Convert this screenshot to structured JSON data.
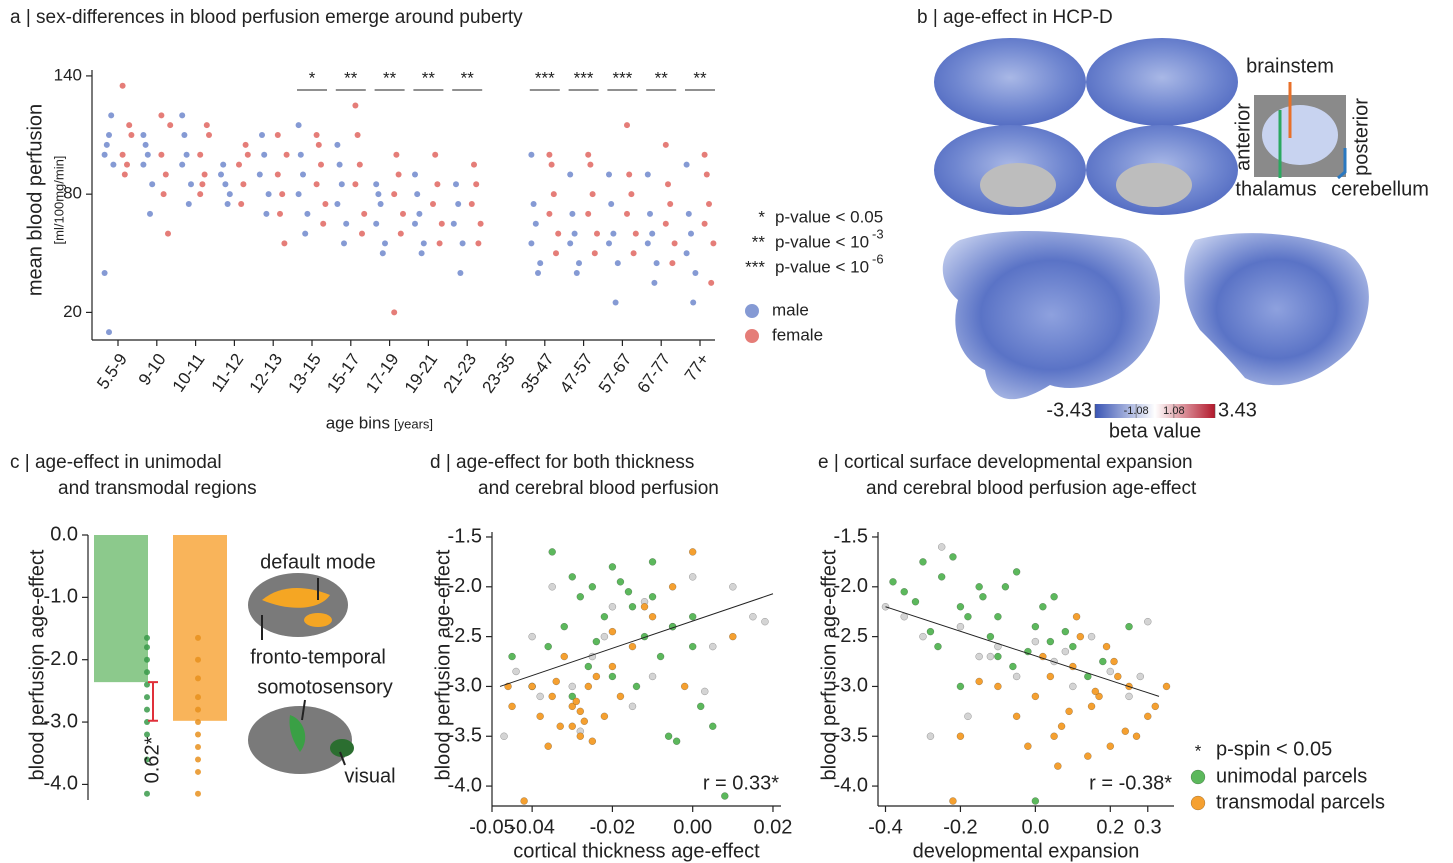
{
  "chart_data": [
    {
      "type": "strip",
      "title": "a  |  sex-differences in blood perfusion emerge around puberty",
      "ylabel": "mean blood perfusion",
      "ylabel_unit": "[ml/100mg/min]",
      "xlabel": "age bins",
      "xlabel_unit": "[years]",
      "categories": [
        "5.5-9",
        "9-10",
        "10-11",
        "11-12",
        "12-13",
        "13-15",
        "15-17",
        "17-19",
        "19-21",
        "21-23",
        "23-35",
        "35-47",
        "47-57",
        "57-67",
        "67-77",
        "77+"
      ],
      "ylim": [
        6,
        143
      ],
      "yticks": [
        20,
        80,
        140
      ],
      "series": [
        {
          "name": "male",
          "color": "#7088cc",
          "values": [
            [
              100,
              110,
              95,
              105,
              120,
              40,
              10
            ],
            [
              95,
              100,
              85,
              105,
              70,
              110
            ],
            [
              95,
              100,
              85,
              110,
              75,
              120
            ],
            [
              90,
              85,
              80,
              95,
              75
            ],
            [
              90,
              100,
              80,
              110,
              70
            ],
            [
              80,
              90,
              70,
              100,
              60,
              115
            ],
            [
              75,
              85,
              65,
              95,
              55,
              105
            ],
            [
              65,
              75,
              55,
              80,
              50,
              85
            ],
            [
              65,
              70,
              55,
              80,
              50,
              90
            ],
            [
              65,
              75,
              55,
              85,
              40
            ],
            [],
            [
              55,
              65,
              45,
              75,
              40,
              100
            ],
            [
              55,
              60,
              45,
              70,
              40,
              90
            ],
            [
              55,
              60,
              45,
              75,
              25,
              90
            ],
            [
              55,
              60,
              45,
              70,
              35,
              90
            ],
            [
              50,
              60,
              40,
              70,
              25,
              95
            ]
          ]
        },
        {
          "name": "female",
          "color": "#e06660",
          "values": [
            [
              100,
              95,
              110,
              90,
              115,
              135
            ],
            [
              100,
              90,
              115,
              80,
              60,
              120
            ],
            [
              100,
              90,
              110,
              85,
              115,
              80
            ],
            [
              95,
              85,
              100,
              75,
              105
            ],
            [
              90,
              80,
              100,
              70,
              55,
              110
            ],
            [
              85,
              95,
              75,
              105,
              65,
              110
            ],
            [
              85,
              95,
              70,
              110,
              60,
              125
            ],
            [
              80,
              90,
              70,
              100,
              60,
              20
            ],
            [
              75,
              85,
              65,
              100,
              55
            ],
            [
              75,
              85,
              65,
              95,
              55
            ],
            [],
            [
              70,
              80,
              60,
              95,
              50,
              100
            ],
            [
              70,
              80,
              60,
              95,
              50,
              100
            ],
            [
              70,
              80,
              60,
              90,
              50,
              115
            ],
            [
              65,
              75,
              55,
              85,
              45,
              105
            ],
            [
              65,
              75,
              55,
              90,
              35,
              100
            ]
          ]
        }
      ],
      "significance": [
        null,
        null,
        null,
        null,
        null,
        "*",
        "**",
        "**",
        "**",
        "**",
        null,
        "***",
        "***",
        "***",
        "**",
        "**"
      ],
      "significance_legend": [
        {
          "symbol": "*",
          "text": "p-value < 0.05"
        },
        {
          "symbol": "**",
          "text": "p-value < 10",
          "sup": "-3"
        },
        {
          "symbol": "***",
          "text": "p-value < 10",
          "sup": "-6"
        }
      ]
    },
    {
      "type": "brain-map",
      "title": "b  |  age-effect in HCP-D",
      "labels": [
        {
          "text": "brainstem",
          "color": "#e8702a"
        },
        {
          "text": "anterior",
          "color": "#222222"
        },
        {
          "text": "posterior",
          "color": "#222222"
        },
        {
          "text": "thalamus",
          "color": "#2aa860"
        },
        {
          "text": "cerebellum",
          "color": "#2a78c0"
        }
      ],
      "colorbar": {
        "label": "beta value",
        "clim": [
          -3.43,
          3.43
        ],
        "ticks": [
          -3.43,
          -1.08,
          1.08,
          3.43
        ],
        "colors": [
          "#3a55b4",
          "#ffffff",
          "#b2182b"
        ]
      }
    },
    {
      "type": "bar",
      "title": [
        "c  |  age-effect in unimodal",
        "and transmodal regions"
      ],
      "ylabel": "blood perfusion age-effect",
      "ylim": [
        -4.25,
        0
      ],
      "yticks": [
        {
          "value": 0,
          "label": "0.0"
        },
        {
          "value": -1,
          "label": "-1.0"
        },
        {
          "value": -2,
          "label": "-2.0"
        },
        {
          "value": -3,
          "label": "-3.0"
        },
        {
          "value": -4,
          "label": "-4.0"
        }
      ],
      "values": [
        -2.36,
        -2.98
      ],
      "colors": [
        "#8cc98c",
        "#f9b45a"
      ],
      "points": [
        [
          -1.65,
          -1.8,
          -2.0,
          -2.2,
          -2.4,
          -2.6,
          -2.8,
          -3.0,
          -3.2,
          -3.6,
          -4.15
        ],
        [
          -1.65,
          -2.0,
          -2.3,
          -2.6,
          -2.8,
          -3.0,
          -3.2,
          -3.4,
          -3.6,
          -3.8,
          -4.15
        ]
      ],
      "point_colors": [
        "#3a9a4a",
        "#e8901e"
      ],
      "difference_label": "0.62*",
      "difference_color": "#e0303a",
      "region_labels": [
        {
          "text": "default mode",
          "color": "#f0901e"
        },
        {
          "text": "fronto-temporal",
          "color": "#f0901e"
        },
        {
          "text": "somotosensory",
          "color": "#3aa045"
        },
        {
          "text": "visual",
          "color": "#3aa045"
        }
      ]
    },
    {
      "type": "scatter",
      "title": [
        "d  |  age-effect for both thickness",
        "and cerebral blood perfusion"
      ],
      "xlabel": "cortical thickness age-effect",
      "ylabel": "blood perfusion age-effect",
      "xlim": [
        -0.05,
        0.022
      ],
      "xticks": [
        -0.05,
        -0.04,
        -0.02,
        {
          "value": 0,
          "label": "0.00"
        },
        0.02
      ],
      "ylim": [
        -4.2,
        -1.45
      ],
      "yticks": [
        -1.5,
        {
          "value": -2,
          "label": "-2.0"
        },
        -2.5,
        {
          "value": -3,
          "label": "-3.0"
        },
        -3.5,
        {
          "value": -4,
          "label": "-4.0"
        }
      ],
      "series": [
        {
          "color": "#d4d4d4",
          "x": [
            -0.047,
            -0.04,
            -0.035,
            -0.03,
            -0.025,
            -0.02,
            -0.015,
            -0.01,
            -0.005,
            0,
            0.005,
            0.01,
            0.015,
            -0.038,
            -0.022,
            -0.012,
            0.003,
            0.018,
            -0.044,
            -0.028
          ],
          "y": [
            -3.5,
            -2.5,
            -2.0,
            -3.0,
            -2.7,
            -2.2,
            -3.2,
            -2.9,
            -2.4,
            -1.9,
            -2.6,
            -2.0,
            -2.3,
            -3.1,
            -2.5,
            -2.15,
            -3.05,
            -2.35,
            -2.85,
            -3.45
          ]
        },
        {
          "color": "#5cb85c",
          "x": [
            -0.035,
            -0.03,
            -0.025,
            -0.02,
            -0.015,
            -0.01,
            -0.005,
            0,
            0.005,
            -0.028,
            -0.022,
            -0.018,
            -0.012,
            -0.008,
            -0.032,
            -0.026,
            -0.02,
            -0.014,
            -0.006,
            0.002,
            -0.045,
            -0.04,
            -0.01,
            0.008,
            -0.016,
            -0.024,
            -0.03,
            -0.036,
            0,
            -0.004
          ],
          "y": [
            -1.65,
            -1.9,
            -2.0,
            -1.8,
            -2.2,
            -2.1,
            -2.4,
            -2.6,
            -3.4,
            -2.1,
            -2.3,
            -1.95,
            -2.5,
            -2.7,
            -2.4,
            -2.8,
            -2.9,
            -3.0,
            -3.5,
            -3.2,
            -2.7,
            -3.0,
            -1.75,
            -4.1,
            -2.05,
            -2.55,
            -3.1,
            -2.6,
            -2.3,
            -3.55
          ]
        },
        {
          "color": "#f5a030",
          "x": [
            -0.045,
            -0.04,
            -0.038,
            -0.035,
            -0.033,
            -0.03,
            -0.028,
            -0.026,
            -0.024,
            -0.022,
            -0.02,
            -0.018,
            -0.036,
            -0.032,
            -0.03,
            -0.028,
            -0.025,
            -0.042,
            -0.015,
            -0.01,
            -0.005,
            0,
            0.01,
            -0.002,
            -0.034,
            -0.029,
            -0.027,
            -0.046,
            -0.02,
            -0.012
          ],
          "y": [
            -3.2,
            -3.0,
            -3.3,
            -3.1,
            -3.4,
            -3.2,
            -3.5,
            -3.0,
            -2.9,
            -3.3,
            -2.8,
            -3.1,
            -3.6,
            -2.7,
            -3.4,
            -3.25,
            -3.55,
            -4.15,
            -2.6,
            -2.3,
            -2.0,
            -1.65,
            -2.5,
            -3.0,
            -2.95,
            -3.15,
            -3.35,
            -3.0,
            -2.45,
            -2.2
          ]
        }
      ],
      "fit": {
        "x": [
          -0.048,
          0.02
        ],
        "y": [
          -3.0,
          -2.07
        ]
      },
      "annotation": "r = 0.33*"
    },
    {
      "type": "scatter",
      "title": [
        "e  |  cortical surface developmental expansion",
        "and cerebral blood perfusion age-effect"
      ],
      "xlabel": "developmental expansion",
      "ylabel": "blood perfusion age-effect",
      "xlim": [
        -0.42,
        0.37
      ],
      "xticks": [
        -0.4,
        -0.2,
        {
          "value": 0,
          "label": "0.0"
        },
        0.2,
        0.3
      ],
      "ylim": [
        -4.2,
        -1.45
      ],
      "yticks": [
        -1.5,
        {
          "value": -2,
          "label": "-2.0"
        },
        -2.5,
        {
          "value": -3,
          "label": "-3.0"
        },
        -3.5,
        {
          "value": -4,
          "label": "-4.0"
        }
      ],
      "series": [
        {
          "color": "#d4d4d4",
          "x": [
            -0.4,
            -0.35,
            -0.3,
            -0.25,
            -0.2,
            -0.15,
            -0.1,
            -0.05,
            0,
            0.05,
            0.1,
            0.15,
            0.2,
            0.25,
            0.3,
            -0.28,
            -0.12,
            0.08,
            0.28,
            -0.18
          ],
          "y": [
            -2.2,
            -2.3,
            -2.5,
            -1.6,
            -2.4,
            -2.7,
            -2.6,
            -2.9,
            -2.55,
            -2.75,
            -3.0,
            -2.5,
            -2.85,
            -3.1,
            -2.35,
            -3.5,
            -2.7,
            -2.65,
            -2.9,
            -3.3
          ]
        },
        {
          "name": "unimodal parcels",
          "color": "#5cb85c",
          "x": [
            -0.38,
            -0.35,
            -0.3,
            -0.25,
            -0.2,
            -0.15,
            -0.1,
            -0.05,
            0,
            0.05,
            0.1,
            -0.32,
            -0.28,
            -0.22,
            -0.18,
            -0.12,
            -0.08,
            -0.02,
            0.02,
            0.08,
            -0.26,
            -0.14,
            -0.06,
            0.04,
            0.14,
            -0.2,
            -0.1,
            0,
            0.18,
            0.25
          ],
          "y": [
            -1.95,
            -2.05,
            -1.75,
            -1.9,
            -2.2,
            -2.0,
            -2.3,
            -1.85,
            -2.4,
            -2.1,
            -2.6,
            -2.15,
            -2.45,
            -1.7,
            -2.3,
            -2.5,
            -2.0,
            -2.65,
            -2.2,
            -2.45,
            -2.6,
            -2.1,
            -2.8,
            -2.55,
            -2.9,
            -3.0,
            -2.7,
            -4.15,
            -2.75,
            -2.4
          ]
        },
        {
          "name": "transmodal parcels",
          "color": "#f5a030",
          "x": [
            -0.1,
            -0.05,
            0,
            0.05,
            0.1,
            0.15,
            0.2,
            0.25,
            0.3,
            0.35,
            0.02,
            0.07,
            0.12,
            0.17,
            0.22,
            0.27,
            0.32,
            -0.02,
            0.04,
            0.09,
            0.14,
            0.19,
            0.24,
            -0.2,
            -0.15,
            0.11,
            0.16,
            0.21,
            -0.22,
            0.06
          ],
          "y": [
            -3.0,
            -3.3,
            -3.1,
            -3.5,
            -2.8,
            -3.2,
            -3.6,
            -3.0,
            -3.3,
            -3.0,
            -2.7,
            -3.4,
            -2.5,
            -3.1,
            -2.9,
            -3.5,
            -3.2,
            -3.6,
            -2.9,
            -3.25,
            -3.7,
            -2.6,
            -3.45,
            -3.5,
            -2.95,
            -2.3,
            -3.05,
            -2.75,
            -4.15,
            -3.8
          ]
        }
      ],
      "fit": {
        "x": [
          -0.4,
          0.33
        ],
        "y": [
          -2.2,
          -3.1
        ]
      },
      "annotation": "r = -0.38*",
      "legend": {
        "symbol": "*",
        "text": "p-spin < 0.05"
      }
    }
  ]
}
